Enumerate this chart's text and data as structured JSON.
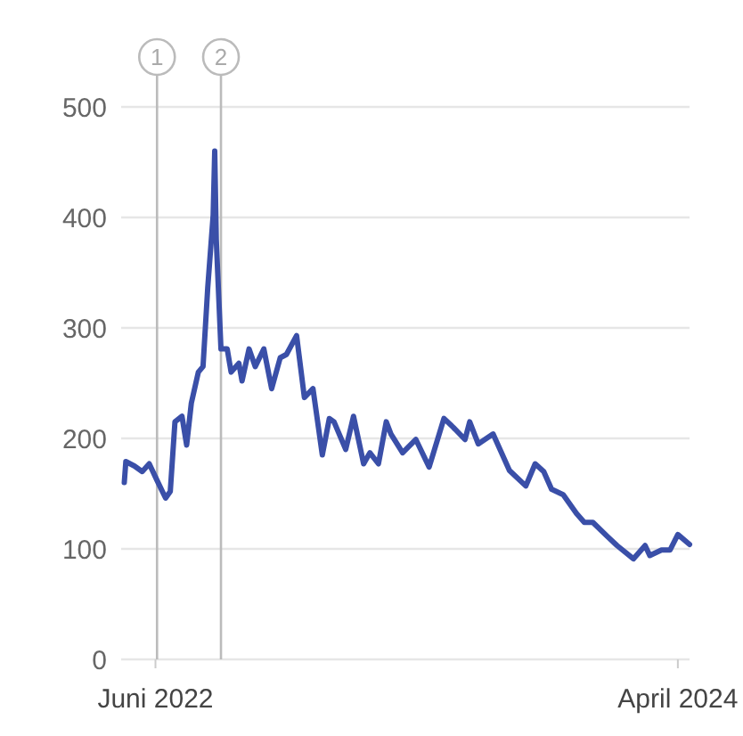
{
  "chart_data": {
    "type": "line",
    "x": [
      "2022-04-22",
      "2022-04-24",
      "2022-05-05",
      "2022-05-15",
      "2022-05-24",
      "2022-06-03",
      "2022-06-14",
      "2022-06-20",
      "2022-06-26",
      "2022-07-05",
      "2022-07-11",
      "2022-07-17",
      "2022-07-26",
      "2022-08-01",
      "2022-08-07",
      "2022-08-14",
      "2022-08-16",
      "2022-08-18",
      "2022-08-24",
      "2022-09-01",
      "2022-09-06",
      "2022-09-16",
      "2022-09-20",
      "2022-09-29",
      "2022-10-07",
      "2022-10-18",
      "2022-10-28",
      "2022-11-08",
      "2022-11-16",
      "2022-11-29",
      "2022-12-09",
      "2022-12-20",
      "2022-12-26",
      "2023-01-01",
      "2023-01-10",
      "2023-01-16",
      "2023-01-31",
      "2023-02-10",
      "2023-02-23",
      "2023-03-03",
      "2023-03-14",
      "2023-03-24",
      "2023-03-30",
      "2023-04-14",
      "2023-05-01",
      "2023-05-18",
      "2023-06-06",
      "2023-06-18",
      "2023-07-03",
      "2023-07-09",
      "2023-07-20",
      "2023-08-08",
      "2023-08-29",
      "2023-09-19",
      "2023-10-01",
      "2023-10-12",
      "2023-10-22",
      "2023-11-06",
      "2023-11-23",
      "2023-12-03",
      "2023-12-14",
      "2024-01-02",
      "2024-01-14",
      "2024-02-04",
      "2024-02-19",
      "2024-02-25",
      "2024-03-11",
      "2024-03-22",
      "2024-04-01",
      "2024-04-16"
    ],
    "series": [
      {
        "color": "#3a4fa8",
        "values": [
          160,
          179,
          175,
          170,
          177,
          162,
          146,
          152,
          215,
          220,
          194,
          232,
          260,
          265,
          336,
          402,
          460,
          380,
          281,
          281,
          260,
          268,
          252,
          281,
          265,
          281,
          245,
          273,
          276,
          293,
          237,
          245,
          215,
          185,
          218,
          215,
          190,
          220,
          177,
          187,
          177,
          215,
          204,
          187,
          199,
          174,
          218,
          210,
          199,
          215,
          195,
          204,
          171,
          157,
          177,
          170,
          154,
          149,
          132,
          124,
          124,
          111,
          103,
          91,
          103,
          94,
          99,
          99,
          113,
          104
        ]
      }
    ],
    "xlim": [
      "2022-04-18",
      "2024-04-16"
    ],
    "xticks": [
      {
        "value": "2022-06-01",
        "label": "Juni 2022"
      },
      {
        "value": "2024-04-01",
        "label": "April 2024"
      }
    ],
    "ylim": [
      0,
      500
    ],
    "yticks": [
      0,
      100,
      200,
      300,
      400,
      500
    ],
    "grid": "y",
    "ref_lines": [
      {
        "axis": "x",
        "value": "2022-06-03",
        "label": "1",
        "color": "#bbbbbb"
      },
      {
        "axis": "x",
        "value": "2022-08-24",
        "label": "2",
        "color": "#bbbbbb"
      }
    ]
  }
}
